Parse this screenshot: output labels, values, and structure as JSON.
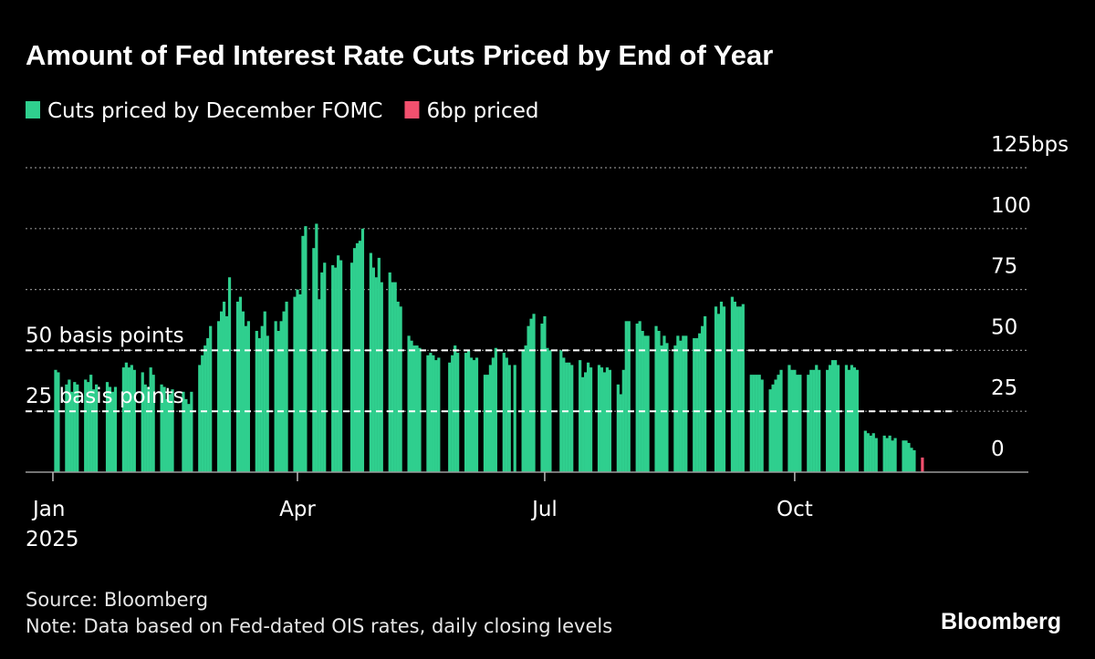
{
  "chart_data": {
    "type": "bar",
    "title": "Amount of Fed Interest Rate Cuts Priced by End of Year",
    "series": [
      {
        "name": "Cuts priced by December FOMC",
        "color": "#2fcf8e",
        "x": [
          2,
          3,
          6,
          7,
          8,
          9,
          10,
          13,
          14,
          15,
          16,
          17,
          21,
          22,
          23,
          24,
          27,
          28,
          29,
          30,
          31,
          34,
          35,
          36,
          37,
          38,
          41,
          42,
          43,
          44,
          45,
          49,
          50,
          51,
          52,
          55,
          56,
          57,
          58,
          59,
          62,
          63,
          64,
          65,
          66,
          69,
          70,
          71,
          72,
          73,
          76,
          77,
          78,
          79,
          80,
          83,
          84,
          85,
          86,
          87,
          90,
          91,
          92,
          93,
          94,
          97,
          98,
          99,
          100,
          101,
          104,
          105,
          106,
          107,
          111,
          112,
          113,
          114,
          115,
          118,
          119,
          120,
          121,
          122,
          125,
          126,
          127,
          128,
          129,
          132,
          133,
          134,
          135,
          136,
          139,
          140,
          141,
          142,
          143,
          147,
          148,
          149,
          150,
          153,
          154,
          155,
          156,
          157,
          160,
          161,
          162,
          163,
          164,
          167,
          168,
          169,
          171,
          174,
          175,
          176,
          177,
          178,
          181,
          182,
          183,
          184,
          188,
          189,
          190,
          191,
          192,
          195,
          196,
          197,
          198,
          199,
          202,
          203,
          204,
          205,
          206,
          209,
          210,
          211,
          212,
          213,
          216,
          217,
          218,
          219,
          220,
          223,
          224,
          225,
          226,
          227,
          230,
          231,
          232,
          233,
          234,
          237,
          238,
          239,
          240,
          241,
          245,
          246,
          247,
          248,
          251,
          252,
          253,
          254,
          255,
          258,
          259,
          260,
          261,
          262,
          265,
          266,
          267,
          268,
          269,
          272,
          273,
          274,
          275,
          276,
          279,
          280,
          281,
          282,
          283,
          286,
          287,
          288,
          289,
          290,
          293,
          294,
          295,
          296,
          297,
          300,
          301,
          302,
          303,
          304,
          307,
          308,
          309,
          310,
          311,
          314,
          315,
          316,
          317,
          318
        ],
        "values": [
          42,
          41,
          36,
          38,
          33,
          37,
          36,
          38,
          37,
          40,
          34,
          36,
          37,
          35,
          33,
          35,
          43,
          45,
          43,
          44,
          42,
          41,
          36,
          35,
          43,
          40,
          36,
          35,
          30,
          32,
          34,
          33,
          30,
          28,
          33,
          44,
          48,
          52,
          55,
          60,
          62,
          66,
          70,
          64,
          80,
          70,
          72,
          66,
          60,
          62,
          58,
          55,
          60,
          66,
          56,
          62,
          58,
          62,
          66,
          70,
          72,
          75,
          73,
          97,
          101,
          92,
          102,
          71,
          82,
          86,
          85,
          84,
          89,
          87,
          86,
          92,
          94,
          95,
          100,
          90,
          84,
          80,
          88,
          78,
          82,
          78,
          78,
          70,
          68,
          56,
          54,
          52,
          52,
          51,
          48,
          49,
          48,
          46,
          47,
          45,
          48,
          52,
          49,
          49,
          50,
          47,
          46,
          47,
          40,
          40,
          44,
          47,
          51,
          49,
          47,
          44,
          44,
          50,
          52,
          60,
          63,
          65,
          61,
          64,
          51,
          50,
          50,
          47,
          45,
          45,
          44,
          46,
          39,
          41,
          45,
          43,
          44,
          43,
          41,
          43,
          42,
          36,
          32,
          42,
          62,
          62,
          61,
          62,
          58,
          56,
          56,
          60,
          58,
          52,
          56,
          53,
          52,
          56,
          54,
          56,
          56,
          55,
          55,
          57,
          60,
          64,
          68,
          65,
          70,
          68,
          72,
          70,
          68,
          68,
          69,
          40,
          40,
          40,
          40,
          38,
          34,
          36,
          38,
          40,
          42,
          44,
          42,
          42,
          40,
          40,
          40,
          42,
          42,
          44,
          42,
          42,
          44,
          46,
          46,
          44,
          44,
          42,
          44,
          43,
          42,
          17,
          16,
          15,
          16,
          14,
          15,
          14,
          15,
          13,
          14,
          13,
          13,
          12,
          10,
          9
        ]
      },
      {
        "name": "6bp priced",
        "color": "#f2506e",
        "x": [
          321
        ],
        "values": [
          6
        ]
      }
    ],
    "xlim": [
      0,
      360
    ],
    "xticks": [
      {
        "value": 1,
        "label": "Jan"
      },
      {
        "value": 91,
        "label": "Apr"
      },
      {
        "value": 182,
        "label": "Jul"
      },
      {
        "value": 274,
        "label": "Oct"
      }
    ],
    "x_year_label": "2025",
    "ylim": [
      0,
      125
    ],
    "yticks": [
      0,
      25,
      50,
      75,
      100,
      {
        "value": 125,
        "label": "125bps"
      }
    ],
    "grid": true,
    "reference_lines": [
      {
        "value": 50,
        "label": "50 basis points"
      },
      {
        "value": 25,
        "label": "25 basis points"
      }
    ],
    "source": "Source: Bloomberg",
    "note": "Note: Data based on Fed-dated OIS rates, daily closing levels",
    "logo": "Bloomberg"
  }
}
